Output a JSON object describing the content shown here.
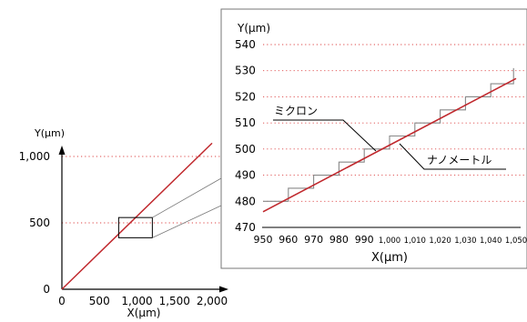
{
  "chart_data": [
    {
      "type": "line",
      "xlabel": "X(µm)",
      "ylabel": "Y(µm)",
      "xlim": [
        0,
        2000
      ],
      "ylim": [
        0,
        1000
      ],
      "x_ticks": [
        0,
        500,
        1000,
        1500,
        2000
      ],
      "x_tick_labels": [
        "0",
        "500",
        "1,000",
        "1,500",
        "2,000"
      ],
      "y_ticks": [
        0,
        500,
        1000
      ],
      "y_tick_labels": [
        "0",
        "500",
        "1,000"
      ],
      "grid": "dotted horizontal",
      "series": [
        {
          "color": "#c0282d",
          "x": [
            0,
            2000
          ],
          "y": [
            0,
            1100
          ]
        }
      ],
      "zoom_box": {
        "x": [
          950,
          1050
        ],
        "y": [
          470,
          540
        ]
      }
    },
    {
      "type": "line",
      "xlabel": "X(µm)",
      "ylabel": "Y(µm)",
      "xlim": [
        950,
        1050
      ],
      "ylim": [
        470,
        540
      ],
      "x_ticks": [
        950,
        960,
        970,
        980,
        990,
        1000,
        1010,
        1020,
        1030,
        1040,
        1050
      ],
      "x_tick_labels": [
        "950",
        "960",
        "970",
        "980",
        "990",
        "1,000",
        "1,010",
        "1,020",
        "1,030",
        "1,040",
        "1,050"
      ],
      "y_ticks": [
        470,
        480,
        490,
        500,
        510,
        520,
        530,
        540
      ],
      "y_tick_labels": [
        "470",
        "480",
        "490",
        "500",
        "510",
        "520",
        "530",
        "540"
      ],
      "grid": "dotted horizontal",
      "annotations": [
        "ミクロン",
        "ナノメートル"
      ],
      "series": [
        {
          "color": "#888888",
          "x": [
            950,
            953,
            956,
            960,
            963,
            966,
            970,
            973,
            976,
            980,
            983,
            986,
            990,
            993,
            996,
            1000,
            1003,
            1006,
            1010,
            1013,
            1016,
            1020,
            1023,
            1026,
            1030,
            1033,
            1036,
            1040,
            1043,
            1046,
            1049
          ],
          "y": [
            480,
            480,
            480,
            485,
            485,
            485,
            490,
            490,
            490,
            495,
            495,
            495,
            500,
            500,
            500,
            505,
            505,
            505,
            510,
            510,
            510,
            515,
            515,
            515,
            520,
            520,
            520,
            525,
            525,
            525,
            531
          ]
        },
        {
          "color": "#c0282d",
          "x": [
            950,
            1050
          ],
          "y": [
            476,
            527
          ]
        }
      ]
    }
  ]
}
